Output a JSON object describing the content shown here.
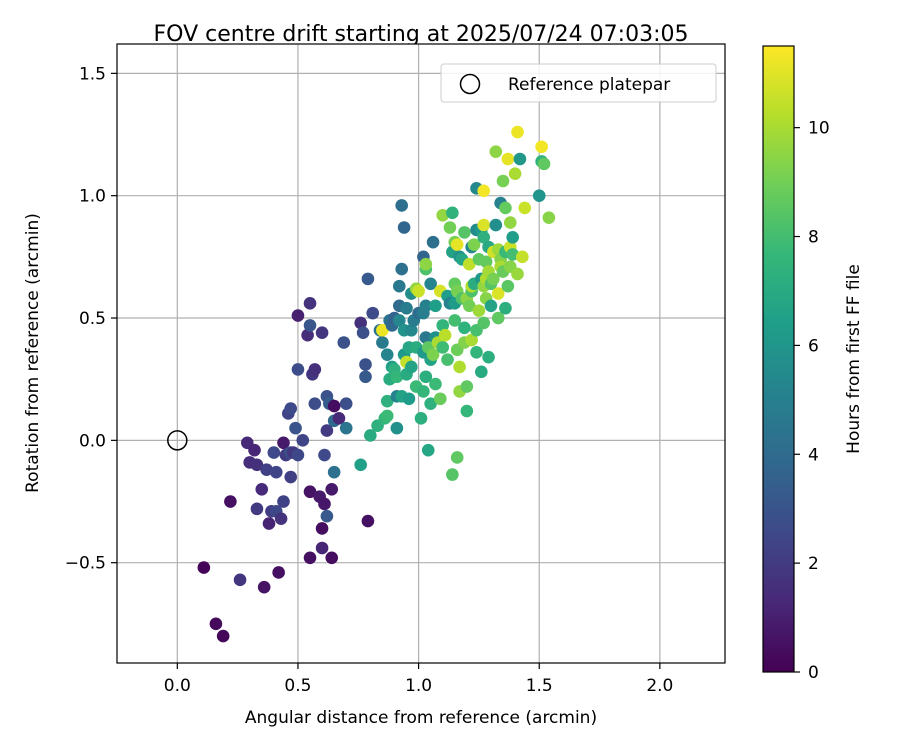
{
  "chart_data": {
    "type": "scatter",
    "title": "FOV centre drift starting at 2025/07/24 07:03:05",
    "xlabel": "Angular distance from reference (arcmin)",
    "ylabel": "Rotation from reference (arcmin)",
    "xlim": [
      -0.25,
      2.27
    ],
    "ylim": [
      -0.91,
      1.62
    ],
    "xticks": [
      0.0,
      0.5,
      1.0,
      1.5,
      2.0
    ],
    "xtick_labels": [
      "0.0",
      "0.5",
      "1.0",
      "1.5",
      "2.0"
    ],
    "yticks": [
      -0.5,
      0.0,
      0.5,
      1.0,
      1.5
    ],
    "ytick_labels": [
      "−0.5",
      "0.0",
      "0.5",
      "1.0",
      "1.5"
    ],
    "grid": true,
    "legend": {
      "placement": "top-right",
      "entries": [
        {
          "label": "Reference platepar",
          "marker": "open-circle"
        }
      ]
    },
    "reference_point": {
      "x": 0.0,
      "y": 0.0
    },
    "colorbar": {
      "label": "Hours from first FF file",
      "range": [
        0,
        11.5
      ],
      "ticks": [
        0,
        2,
        4,
        6,
        8,
        10
      ],
      "tick_labels": [
        "0",
        "2",
        "4",
        "6",
        "8",
        "10"
      ],
      "colormap": "viridis"
    },
    "colormap_stops": [
      "#440154",
      "#482878",
      "#3e4989",
      "#31688e",
      "#26828e",
      "#1f9e89",
      "#35b779",
      "#6ece58",
      "#b5de2b",
      "#fde725"
    ],
    "points": [
      {
        "x": 0.11,
        "y": -0.52,
        "t": 0.1
      },
      {
        "x": 0.16,
        "y": -0.75,
        "t": 0.3
      },
      {
        "x": 0.19,
        "y": -0.8,
        "t": 0.2
      },
      {
        "x": 0.22,
        "y": -0.25,
        "t": 0.5
      },
      {
        "x": 0.26,
        "y": -0.57,
        "t": 1.8
      },
      {
        "x": 0.29,
        "y": -0.01,
        "t": 1.3
      },
      {
        "x": 0.3,
        "y": -0.09,
        "t": 1.5
      },
      {
        "x": 0.32,
        "y": -0.04,
        "t": 1.2
      },
      {
        "x": 0.33,
        "y": -0.1,
        "t": 1.6
      },
      {
        "x": 0.33,
        "y": -0.28,
        "t": 2.0
      },
      {
        "x": 0.35,
        "y": -0.2,
        "t": 1.4
      },
      {
        "x": 0.36,
        "y": -0.6,
        "t": 0.6
      },
      {
        "x": 0.37,
        "y": -0.12,
        "t": 2.2
      },
      {
        "x": 0.38,
        "y": -0.34,
        "t": 1.1
      },
      {
        "x": 0.39,
        "y": -0.29,
        "t": 2.1
      },
      {
        "x": 0.4,
        "y": -0.05,
        "t": 2.6
      },
      {
        "x": 0.41,
        "y": -0.13,
        "t": 2.4
      },
      {
        "x": 0.41,
        "y": -0.29,
        "t": 2.5
      },
      {
        "x": 0.42,
        "y": -0.54,
        "t": 0.5
      },
      {
        "x": 0.43,
        "y": -0.32,
        "t": 1.7
      },
      {
        "x": 0.44,
        "y": -0.01,
        "t": 0.8
      },
      {
        "x": 0.44,
        "y": -0.25,
        "t": 2.3
      },
      {
        "x": 0.45,
        "y": -0.06,
        "t": 2.0
      },
      {
        "x": 0.46,
        "y": 0.11,
        "t": 2.4
      },
      {
        "x": 0.47,
        "y": 0.13,
        "t": 2.6
      },
      {
        "x": 0.47,
        "y": -0.05,
        "t": 2.9
      },
      {
        "x": 0.47,
        "y": -0.15,
        "t": 2.2
      },
      {
        "x": 0.48,
        "y": -0.05,
        "t": 1.9
      },
      {
        "x": 0.49,
        "y": 0.05,
        "t": 3.0
      },
      {
        "x": 0.5,
        "y": -0.06,
        "t": 2.5
      },
      {
        "x": 0.5,
        "y": 0.51,
        "t": 1.0
      },
      {
        "x": 0.5,
        "y": 0.29,
        "t": 2.7
      },
      {
        "x": 0.52,
        "y": 0.0,
        "t": 2.4
      },
      {
        "x": 0.54,
        "y": 0.43,
        "t": 1.5
      },
      {
        "x": 0.55,
        "y": -0.21,
        "t": 0.6
      },
      {
        "x": 0.55,
        "y": -0.48,
        "t": 0.5
      },
      {
        "x": 0.55,
        "y": 0.47,
        "t": 3.1
      },
      {
        "x": 0.55,
        "y": 0.56,
        "t": 1.7
      },
      {
        "x": 0.56,
        "y": 0.27,
        "t": 1.8
      },
      {
        "x": 0.57,
        "y": 0.29,
        "t": 1.6
      },
      {
        "x": 0.57,
        "y": 0.15,
        "t": 2.7
      },
      {
        "x": 0.59,
        "y": -0.23,
        "t": 0.8
      },
      {
        "x": 0.6,
        "y": -0.36,
        "t": 0.4
      },
      {
        "x": 0.6,
        "y": -0.44,
        "t": 1.2
      },
      {
        "x": 0.6,
        "y": 0.44,
        "t": 1.8
      },
      {
        "x": 0.61,
        "y": -0.26,
        "t": 0.7
      },
      {
        "x": 0.61,
        "y": -0.06,
        "t": 2.6
      },
      {
        "x": 0.62,
        "y": 0.18,
        "t": 2.9
      },
      {
        "x": 0.62,
        "y": -0.31,
        "t": 3.2
      },
      {
        "x": 0.62,
        "y": 0.04,
        "t": 2.0
      },
      {
        "x": 0.63,
        "y": 0.15,
        "t": 3.4
      },
      {
        "x": 0.64,
        "y": -0.48,
        "t": 0.4
      },
      {
        "x": 0.64,
        "y": -0.2,
        "t": 0.8
      },
      {
        "x": 0.65,
        "y": 0.14,
        "t": 0.4
      },
      {
        "x": 0.65,
        "y": 0.08,
        "t": 3.9
      },
      {
        "x": 0.65,
        "y": -0.13,
        "t": 4.3
      },
      {
        "x": 0.67,
        "y": 0.09,
        "t": 1.3
      },
      {
        "x": 0.69,
        "y": 0.4,
        "t": 2.9
      },
      {
        "x": 0.7,
        "y": 0.15,
        "t": 2.8
      },
      {
        "x": 0.7,
        "y": 0.05,
        "t": 4.5
      },
      {
        "x": 0.76,
        "y": 0.48,
        "t": 1.6
      },
      {
        "x": 0.76,
        "y": -0.1,
        "t": 6.5
      },
      {
        "x": 0.77,
        "y": 0.44,
        "t": 2.8
      },
      {
        "x": 0.78,
        "y": 0.31,
        "t": 2.9
      },
      {
        "x": 0.78,
        "y": 0.26,
        "t": 3.2
      },
      {
        "x": 0.79,
        "y": -0.33,
        "t": 0.5
      },
      {
        "x": 0.79,
        "y": 0.66,
        "t": 3.3
      },
      {
        "x": 0.8,
        "y": 0.02,
        "t": 7.0
      },
      {
        "x": 0.81,
        "y": 0.52,
        "t": 2.6
      },
      {
        "x": 0.83,
        "y": 0.06,
        "t": 7.3
      },
      {
        "x": 0.84,
        "y": 0.45,
        "t": 4.4
      },
      {
        "x": 0.85,
        "y": 0.4,
        "t": 4.7
      },
      {
        "x": 0.85,
        "y": 0.45,
        "t": 11.2
      },
      {
        "x": 0.86,
        "y": 0.09,
        "t": 7.6
      },
      {
        "x": 0.87,
        "y": 0.16,
        "t": 7.3
      },
      {
        "x": 0.87,
        "y": 0.35,
        "t": 5.2
      },
      {
        "x": 0.87,
        "y": 0.1,
        "t": 7.8
      },
      {
        "x": 0.88,
        "y": 0.25,
        "t": 7.1
      },
      {
        "x": 0.88,
        "y": 0.49,
        "t": 4.4
      },
      {
        "x": 0.89,
        "y": 0.3,
        "t": 6.5
      },
      {
        "x": 0.89,
        "y": 0.47,
        "t": 3.9
      },
      {
        "x": 0.9,
        "y": 0.5,
        "t": 3.6
      },
      {
        "x": 0.9,
        "y": 0.29,
        "t": 7.3
      },
      {
        "x": 0.91,
        "y": 0.05,
        "t": 5.8
      },
      {
        "x": 0.91,
        "y": 0.18,
        "t": 5.1
      },
      {
        "x": 0.91,
        "y": 0.26,
        "t": 7.6
      },
      {
        "x": 0.92,
        "y": 0.55,
        "t": 4.0
      },
      {
        "x": 0.92,
        "y": 0.49,
        "t": 5.3
      },
      {
        "x": 0.92,
        "y": 0.63,
        "t": 4.6
      },
      {
        "x": 0.93,
        "y": 0.7,
        "t": 4.3
      },
      {
        "x": 0.93,
        "y": 0.18,
        "t": 6.6
      },
      {
        "x": 0.93,
        "y": 0.96,
        "t": 4.2
      },
      {
        "x": 0.94,
        "y": 0.87,
        "t": 3.8
      },
      {
        "x": 0.94,
        "y": 0.45,
        "t": 5.9
      },
      {
        "x": 0.94,
        "y": 0.35,
        "t": 6.2
      },
      {
        "x": 0.95,
        "y": 0.54,
        "t": 4.8
      },
      {
        "x": 0.95,
        "y": 0.27,
        "t": 7.0
      },
      {
        "x": 0.95,
        "y": 0.32,
        "t": 10.5
      },
      {
        "x": 0.96,
        "y": 0.17,
        "t": 6.3
      },
      {
        "x": 0.96,
        "y": 0.38,
        "t": 6.8
      },
      {
        "x": 0.97,
        "y": 0.45,
        "t": 5.4
      },
      {
        "x": 0.97,
        "y": 0.3,
        "t": 6.7
      },
      {
        "x": 0.97,
        "y": 0.6,
        "t": 5.6
      },
      {
        "x": 0.98,
        "y": 0.49,
        "t": 4.8
      },
      {
        "x": 0.99,
        "y": 0.38,
        "t": 7.1
      },
      {
        "x": 0.99,
        "y": 0.62,
        "t": 9.6
      },
      {
        "x": 0.99,
        "y": 0.22,
        "t": 7.8
      },
      {
        "x": 1.0,
        "y": 0.52,
        "t": 4.1
      },
      {
        "x": 1.0,
        "y": 0.61,
        "t": 10.6
      },
      {
        "x": 1.01,
        "y": 0.09,
        "t": 7.2
      },
      {
        "x": 1.02,
        "y": 0.2,
        "t": 7.6
      },
      {
        "x": 1.02,
        "y": 0.36,
        "t": 6.2
      },
      {
        "x": 1.02,
        "y": 0.52,
        "t": 4.9
      },
      {
        "x": 1.02,
        "y": 0.75,
        "t": 3.7
      },
      {
        "x": 1.03,
        "y": 0.7,
        "t": 8.2
      },
      {
        "x": 1.03,
        "y": 0.55,
        "t": 5.0
      },
      {
        "x": 1.03,
        "y": 0.42,
        "t": 4.6
      },
      {
        "x": 1.03,
        "y": 0.26,
        "t": 7.2
      },
      {
        "x": 1.03,
        "y": 0.72,
        "t": 9.5
      },
      {
        "x": 1.04,
        "y": -0.04,
        "t": 6.8
      },
      {
        "x": 1.04,
        "y": 0.38,
        "t": 8.6
      },
      {
        "x": 1.05,
        "y": 0.15,
        "t": 7.3
      },
      {
        "x": 1.05,
        "y": 0.33,
        "t": 6.6
      },
      {
        "x": 1.05,
        "y": 0.64,
        "t": 5.2
      },
      {
        "x": 1.06,
        "y": 0.81,
        "t": 4.2
      },
      {
        "x": 1.06,
        "y": 0.35,
        "t": 9.2
      },
      {
        "x": 1.07,
        "y": 0.23,
        "t": 7.8
      },
      {
        "x": 1.07,
        "y": 0.42,
        "t": 5.8
      },
      {
        "x": 1.07,
        "y": 0.55,
        "t": 6.4
      },
      {
        "x": 1.08,
        "y": 0.4,
        "t": 10.0
      },
      {
        "x": 1.09,
        "y": 0.61,
        "t": 10.8
      },
      {
        "x": 1.09,
        "y": 0.17,
        "t": 8.8
      },
      {
        "x": 1.1,
        "y": 0.92,
        "t": 9.6
      },
      {
        "x": 1.1,
        "y": 0.47,
        "t": 7.5
      },
      {
        "x": 1.1,
        "y": 0.38,
        "t": 7.9
      },
      {
        "x": 1.11,
        "y": 0.43,
        "t": 10.3
      },
      {
        "x": 1.12,
        "y": 0.59,
        "t": 6.4
      },
      {
        "x": 1.12,
        "y": 0.33,
        "t": 8.1
      },
      {
        "x": 1.13,
        "y": 0.87,
        "t": 9.0
      },
      {
        "x": 1.13,
        "y": 0.56,
        "t": 5.1
      },
      {
        "x": 1.14,
        "y": -0.14,
        "t": 8.4
      },
      {
        "x": 1.14,
        "y": 0.77,
        "t": 6.6
      },
      {
        "x": 1.14,
        "y": 0.93,
        "t": 7.4
      },
      {
        "x": 1.15,
        "y": 0.49,
        "t": 8.0
      },
      {
        "x": 1.15,
        "y": 0.81,
        "t": 9.1
      },
      {
        "x": 1.15,
        "y": 0.64,
        "t": 8.7
      },
      {
        "x": 1.15,
        "y": 0.56,
        "t": 6.3
      },
      {
        "x": 1.16,
        "y": -0.07,
        "t": 8.6
      },
      {
        "x": 1.16,
        "y": 0.61,
        "t": 9.1
      },
      {
        "x": 1.16,
        "y": 0.37,
        "t": 8.9
      },
      {
        "x": 1.16,
        "y": 0.8,
        "t": 11.1
      },
      {
        "x": 1.17,
        "y": 0.75,
        "t": 5.9
      },
      {
        "x": 1.17,
        "y": 0.2,
        "t": 9.6
      },
      {
        "x": 1.17,
        "y": 0.3,
        "t": 10.1
      },
      {
        "x": 1.18,
        "y": 0.58,
        "t": 8.3
      },
      {
        "x": 1.18,
        "y": 0.74,
        "t": 6.8
      },
      {
        "x": 1.19,
        "y": 0.46,
        "t": 7.4
      },
      {
        "x": 1.19,
        "y": 0.4,
        "t": 9.3
      },
      {
        "x": 1.19,
        "y": 0.85,
        "t": 8.4
      },
      {
        "x": 1.2,
        "y": 0.58,
        "t": 9.5
      },
      {
        "x": 1.2,
        "y": 0.12,
        "t": 7.6
      },
      {
        "x": 1.2,
        "y": 0.22,
        "t": 8.6
      },
      {
        "x": 1.21,
        "y": 0.55,
        "t": 9.0
      },
      {
        "x": 1.21,
        "y": 0.72,
        "t": 10.4
      },
      {
        "x": 1.22,
        "y": 0.79,
        "t": 5.4
      },
      {
        "x": 1.22,
        "y": 0.61,
        "t": 8.2
      },
      {
        "x": 1.22,
        "y": 0.63,
        "t": 10.2
      },
      {
        "x": 1.22,
        "y": 0.41,
        "t": 10.0
      },
      {
        "x": 1.23,
        "y": 0.8,
        "t": 9.2
      },
      {
        "x": 1.23,
        "y": 0.64,
        "t": 7.1
      },
      {
        "x": 1.24,
        "y": 0.45,
        "t": 8.1
      },
      {
        "x": 1.24,
        "y": 0.86,
        "t": 5.5
      },
      {
        "x": 1.24,
        "y": 0.36,
        "t": 7.5
      },
      {
        "x": 1.24,
        "y": 1.03,
        "t": 5.4
      },
      {
        "x": 1.25,
        "y": 0.53,
        "t": 9.8
      },
      {
        "x": 1.25,
        "y": 0.74,
        "t": 8.6
      },
      {
        "x": 1.26,
        "y": 0.86,
        "t": 6.2
      },
      {
        "x": 1.26,
        "y": 0.66,
        "t": 6.1
      },
      {
        "x": 1.26,
        "y": 0.28,
        "t": 7.0
      },
      {
        "x": 1.27,
        "y": 0.48,
        "t": 8.4
      },
      {
        "x": 1.27,
        "y": 0.88,
        "t": 10.9
      },
      {
        "x": 1.27,
        "y": 0.63,
        "t": 9.6
      },
      {
        "x": 1.27,
        "y": 0.83,
        "t": 7.3
      },
      {
        "x": 1.27,
        "y": 1.02,
        "t": 11.3
      },
      {
        "x": 1.28,
        "y": 0.73,
        "t": 8.7
      },
      {
        "x": 1.28,
        "y": 0.58,
        "t": 9.4
      },
      {
        "x": 1.28,
        "y": 0.66,
        "t": 10.1
      },
      {
        "x": 1.29,
        "y": 0.79,
        "t": 6.9
      },
      {
        "x": 1.29,
        "y": 0.34,
        "t": 7.2
      },
      {
        "x": 1.29,
        "y": 0.69,
        "t": 9.9
      },
      {
        "x": 1.3,
        "y": 0.55,
        "t": 6.7
      },
      {
        "x": 1.3,
        "y": 0.64,
        "t": 8.4
      },
      {
        "x": 1.31,
        "y": 0.77,
        "t": 10.7
      },
      {
        "x": 1.31,
        "y": 0.66,
        "t": 9.1
      },
      {
        "x": 1.32,
        "y": 1.18,
        "t": 9.5
      },
      {
        "x": 1.32,
        "y": 0.88,
        "t": 5.7
      },
      {
        "x": 1.33,
        "y": 0.78,
        "t": 9.8
      },
      {
        "x": 1.33,
        "y": 0.6,
        "t": 10.9
      },
      {
        "x": 1.33,
        "y": 0.5,
        "t": 8.6
      },
      {
        "x": 1.34,
        "y": 0.74,
        "t": 9.3
      },
      {
        "x": 1.34,
        "y": 0.97,
        "t": 5.1
      },
      {
        "x": 1.34,
        "y": 0.71,
        "t": 10.0
      },
      {
        "x": 1.35,
        "y": 1.06,
        "t": 9.1
      },
      {
        "x": 1.35,
        "y": 0.69,
        "t": 8.8
      },
      {
        "x": 1.36,
        "y": 0.95,
        "t": 8.7
      },
      {
        "x": 1.36,
        "y": 0.77,
        "t": 7.8
      },
      {
        "x": 1.36,
        "y": 0.54,
        "t": 7.2
      },
      {
        "x": 1.37,
        "y": 1.15,
        "t": 11.1
      },
      {
        "x": 1.37,
        "y": 0.63,
        "t": 8.5
      },
      {
        "x": 1.38,
        "y": 0.79,
        "t": 10.6
      },
      {
        "x": 1.38,
        "y": 0.71,
        "t": 9.4
      },
      {
        "x": 1.38,
        "y": 0.89,
        "t": 9.6
      },
      {
        "x": 1.39,
        "y": 0.83,
        "t": 6.4
      },
      {
        "x": 1.39,
        "y": 0.76,
        "t": 8.0
      },
      {
        "x": 1.4,
        "y": 1.09,
        "t": 10.0
      },
      {
        "x": 1.41,
        "y": 1.26,
        "t": 11.2
      },
      {
        "x": 1.41,
        "y": 0.68,
        "t": 9.7
      },
      {
        "x": 1.42,
        "y": 1.15,
        "t": 6.1
      },
      {
        "x": 1.43,
        "y": 0.75,
        "t": 10.5
      },
      {
        "x": 1.44,
        "y": 0.95,
        "t": 10.6
      },
      {
        "x": 1.5,
        "y": 1.0,
        "t": 6.0
      },
      {
        "x": 1.51,
        "y": 1.14,
        "t": 7.4
      },
      {
        "x": 1.51,
        "y": 1.2,
        "t": 11.3
      },
      {
        "x": 1.52,
        "y": 1.13,
        "t": 8.6
      },
      {
        "x": 1.54,
        "y": 0.91,
        "t": 9.4
      }
    ]
  }
}
